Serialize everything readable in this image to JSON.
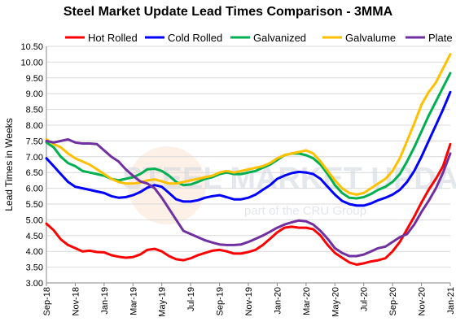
{
  "chart_data": {
    "type": "line",
    "title": "Steel Market Update Lead Times Comparison - 3MMA",
    "ylabel": "Lead Times in Weeks",
    "xlabel": "",
    "ylim": [
      3.0,
      10.5
    ],
    "yticks": [
      "3.00",
      "3.50",
      "4.00",
      "4.50",
      "5.00",
      "5.50",
      "6.00",
      "6.50",
      "7.00",
      "7.50",
      "8.00",
      "8.50",
      "9.00",
      "9.50",
      "10.00",
      "10.50"
    ],
    "x_tick_labels": [
      "Sep-18",
      "Nov-18",
      "Jan-19",
      "Mar-19",
      "May-19",
      "Jul-19",
      "Sep-19",
      "Nov-19",
      "Jan-20",
      "Mar-20",
      "May-20",
      "Jul-20",
      "Sep-20",
      "Nov-20",
      "Jan-21"
    ],
    "grid": "horizontal",
    "legend": "top",
    "watermark": {
      "main": "STEEL MARKET UPDATE",
      "sub": "part of the CRU Group"
    },
    "x_dates": [
      "Sep-18",
      "Oct-18",
      "Oct-18",
      "Nov-18",
      "Nov-18",
      "Dec-18",
      "Dec-18",
      "Jan-19",
      "Jan-19",
      "Feb-19",
      "Feb-19",
      "Mar-19",
      "Mar-19",
      "Apr-19",
      "Apr-19",
      "May-19",
      "May-19",
      "Jun-19",
      "Jun-19",
      "Jul-19",
      "Jul-19",
      "Aug-19",
      "Aug-19",
      "Sep-19",
      "Sep-19",
      "Oct-19",
      "Oct-19",
      "Nov-19",
      "Nov-19",
      "Dec-19",
      "Dec-19",
      "Jan-20",
      "Jan-20",
      "Feb-20",
      "Feb-20",
      "Mar-20",
      "Mar-20",
      "Apr-20",
      "Apr-20",
      "May-20",
      "May-20",
      "Jun-20",
      "Jun-20",
      "Jul-20",
      "Jul-20",
      "Aug-20",
      "Aug-20",
      "Sep-20",
      "Sep-20",
      "Oct-20",
      "Oct-20",
      "Nov-20",
      "Nov-20",
      "Dec-20",
      "Dec-20",
      "Jan-21",
      "Jan-21"
    ],
    "series": [
      {
        "name": "Hot Rolled",
        "color": "#ff0000",
        "values": [
          4.88,
          4.67,
          4.38,
          4.2,
          4.1,
          4.0,
          4.02,
          3.98,
          3.97,
          3.88,
          3.83,
          3.8,
          3.82,
          3.9,
          4.05,
          4.08,
          4.0,
          3.85,
          3.75,
          3.72,
          3.78,
          3.88,
          3.95,
          4.02,
          4.05,
          4.0,
          3.93,
          3.93,
          3.98,
          4.05,
          4.2,
          4.4,
          4.6,
          4.75,
          4.78,
          4.75,
          4.75,
          4.7,
          4.5,
          4.2,
          3.95,
          3.8,
          3.65,
          3.58,
          3.62,
          3.68,
          3.72,
          3.78,
          4.0,
          4.3,
          4.7,
          5.1,
          5.55,
          5.95,
          6.3,
          6.7,
          7.4
        ]
      },
      {
        "name": "Cold Rolled",
        "color": "#0000ff",
        "values": [
          6.95,
          6.7,
          6.45,
          6.2,
          6.05,
          6.0,
          5.95,
          5.9,
          5.85,
          5.75,
          5.7,
          5.72,
          5.78,
          5.88,
          6.02,
          6.1,
          6.05,
          5.85,
          5.65,
          5.58,
          5.58,
          5.62,
          5.7,
          5.75,
          5.78,
          5.72,
          5.65,
          5.65,
          5.7,
          5.8,
          5.95,
          6.1,
          6.3,
          6.4,
          6.48,
          6.52,
          6.5,
          6.45,
          6.3,
          6.05,
          5.8,
          5.6,
          5.5,
          5.45,
          5.45,
          5.52,
          5.62,
          5.7,
          5.8,
          5.95,
          6.2,
          6.55,
          7.0,
          7.5,
          8.0,
          8.5,
          9.05
        ]
      },
      {
        "name": "Galvanized",
        "color": "#00b050",
        "values": [
          7.45,
          7.3,
          7.0,
          6.8,
          6.7,
          6.55,
          6.5,
          6.45,
          6.4,
          6.3,
          6.25,
          6.3,
          6.35,
          6.45,
          6.6,
          6.62,
          6.55,
          6.4,
          6.2,
          6.1,
          6.12,
          6.2,
          6.3,
          6.35,
          6.45,
          6.5,
          6.45,
          6.45,
          6.5,
          6.55,
          6.65,
          6.75,
          6.9,
          7.05,
          7.1,
          7.1,
          7.05,
          6.95,
          6.75,
          6.45,
          6.1,
          5.85,
          5.7,
          5.68,
          5.72,
          5.82,
          5.95,
          6.05,
          6.2,
          6.45,
          6.85,
          7.3,
          7.8,
          8.3,
          8.75,
          9.2,
          9.65
        ]
      },
      {
        "name": "Galvalume",
        "color": "#ffc000",
        "values": [
          7.55,
          7.4,
          7.3,
          7.1,
          6.95,
          6.85,
          6.75,
          6.6,
          6.45,
          6.3,
          6.2,
          6.15,
          6.15,
          6.18,
          6.25,
          6.28,
          6.22,
          6.15,
          6.15,
          6.2,
          6.25,
          6.3,
          6.35,
          6.4,
          6.5,
          6.55,
          6.5,
          6.55,
          6.6,
          6.65,
          6.7,
          6.8,
          6.95,
          7.05,
          7.1,
          7.15,
          7.2,
          7.1,
          6.85,
          6.55,
          6.25,
          6.0,
          5.85,
          5.8,
          5.85,
          6.0,
          6.15,
          6.3,
          6.55,
          6.95,
          7.5,
          8.05,
          8.65,
          9.05,
          9.35,
          9.8,
          10.25
        ]
      },
      {
        "name": "Plate",
        "color": "#7030a0",
        "values": [
          7.5,
          7.45,
          7.5,
          7.55,
          7.45,
          7.42,
          7.42,
          7.4,
          7.2,
          7.0,
          6.85,
          6.6,
          6.4,
          6.22,
          6.15,
          6.0,
          5.7,
          5.35,
          5.0,
          4.65,
          4.55,
          4.45,
          4.35,
          4.28,
          4.22,
          4.2,
          4.2,
          4.22,
          4.3,
          4.4,
          4.5,
          4.62,
          4.75,
          4.85,
          4.92,
          4.98,
          4.95,
          4.85,
          4.65,
          4.4,
          4.1,
          3.95,
          3.85,
          3.85,
          3.9,
          4.0,
          4.1,
          4.15,
          4.3,
          4.45,
          4.55,
          4.85,
          5.25,
          5.6,
          6.0,
          6.5,
          7.1
        ]
      }
    ]
  }
}
